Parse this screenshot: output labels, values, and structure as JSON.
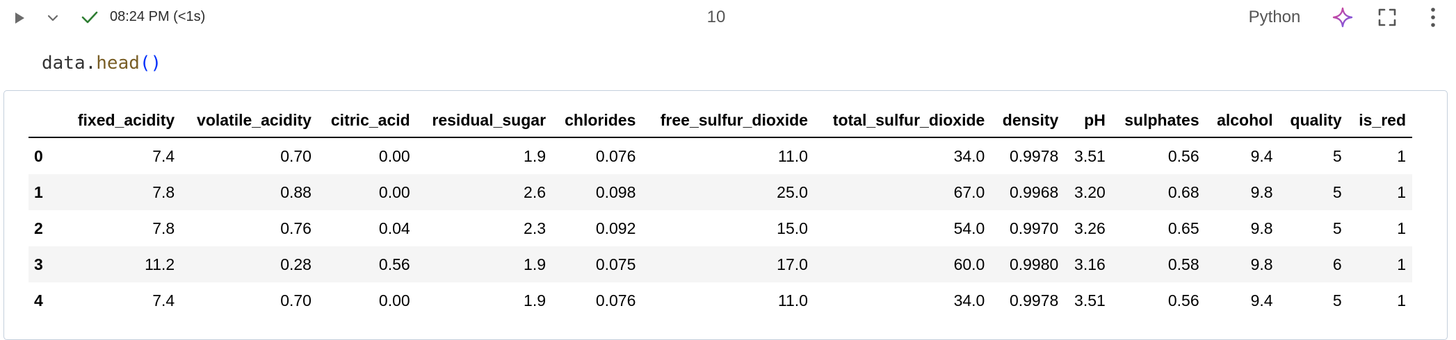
{
  "toolbar": {
    "run_icon": "play-icon",
    "expand_icon": "chevron-down-icon",
    "status_icon": "check-icon",
    "exec_time": "08:24 PM (<1s)",
    "execution_count": "10",
    "kernel_language": "Python",
    "ai_icon": "sparkle-icon",
    "fullscreen_icon": "fullscreen-icon",
    "more_icon": "more-vertical-icon",
    "success_color": "#2e7d32",
    "ai_color": "#c04fd8"
  },
  "cell": {
    "code_object": "data",
    "code_dot": ".",
    "code_function": "head",
    "code_parens": "()"
  },
  "output_table": {
    "columns": [
      "fixed_acidity",
      "volatile_acidity",
      "citric_acid",
      "residual_sugar",
      "chlorides",
      "free_sulfur_dioxide",
      "total_sulfur_dioxide",
      "density",
      "pH",
      "sulphates",
      "alcohol",
      "quality",
      "is_red"
    ],
    "rows": [
      {
        "index": "0",
        "values": [
          "7.4",
          "0.70",
          "0.00",
          "1.9",
          "0.076",
          "11.0",
          "34.0",
          "0.9978",
          "3.51",
          "0.56",
          "9.4",
          "5",
          "1"
        ]
      },
      {
        "index": "1",
        "values": [
          "7.8",
          "0.88",
          "0.00",
          "2.6",
          "0.098",
          "25.0",
          "67.0",
          "0.9968",
          "3.20",
          "0.68",
          "9.8",
          "5",
          "1"
        ]
      },
      {
        "index": "2",
        "values": [
          "7.8",
          "0.76",
          "0.04",
          "2.3",
          "0.092",
          "15.0",
          "54.0",
          "0.9970",
          "3.26",
          "0.65",
          "9.8",
          "5",
          "1"
        ]
      },
      {
        "index": "3",
        "values": [
          "11.2",
          "0.28",
          "0.56",
          "1.9",
          "0.075",
          "17.0",
          "60.0",
          "0.9980",
          "3.16",
          "0.58",
          "9.8",
          "6",
          "1"
        ]
      },
      {
        "index": "4",
        "values": [
          "7.4",
          "0.70",
          "0.00",
          "1.9",
          "0.076",
          "11.0",
          "34.0",
          "0.9978",
          "3.51",
          "0.56",
          "9.4",
          "5",
          "1"
        ]
      }
    ]
  }
}
